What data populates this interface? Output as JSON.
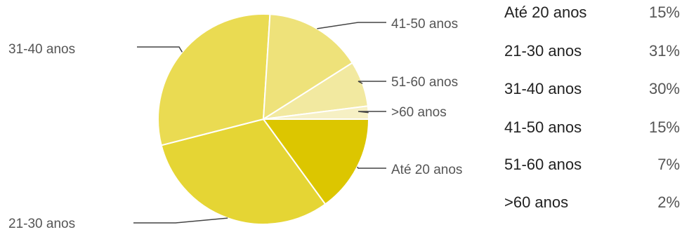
{
  "chart_data": {
    "type": "pie",
    "title": "",
    "categories": [
      "Até 20 anos",
      "21-30 anos",
      "31-40 anos",
      "41-50 anos",
      "51-60 anos",
      ">60 anos"
    ],
    "values": [
      15,
      31,
      30,
      15,
      7,
      2
    ],
    "value_labels": [
      "15%",
      "31%",
      "30%",
      "15%",
      "7%",
      "2%"
    ],
    "colors": [
      "#dcc600",
      "#e5d534",
      "#eadb52",
      "#eee27a",
      "#f2e9a0",
      "#f6f0c4"
    ],
    "legend": "right",
    "start_angle_deg": 90,
    "direction": "clockwise"
  }
}
